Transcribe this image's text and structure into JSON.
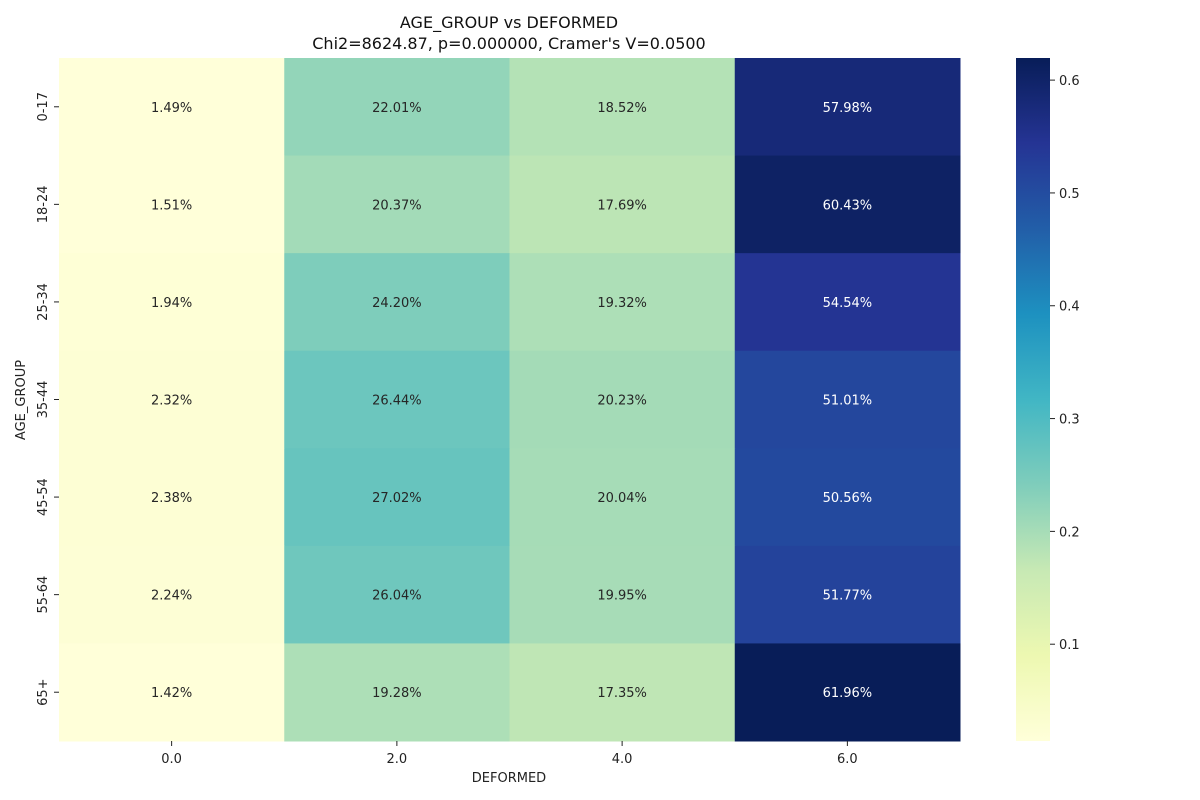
{
  "chart_data": {
    "type": "heatmap",
    "title": "AGE_GROUP vs DEFORMED",
    "subtitle": "Chi2=8624.87, p=0.000000, Cramer's V=0.0500",
    "xlabel": "DEFORMED",
    "ylabel": "AGE_GROUP",
    "x_categories": [
      "0.0",
      "2.0",
      "4.0",
      "6.0"
    ],
    "y_categories": [
      "0-17",
      "18-24",
      "25-34",
      "35-44",
      "45-54",
      "55-64",
      "65+"
    ],
    "values": [
      [
        0.0149,
        0.2201,
        0.1852,
        0.5798
      ],
      [
        0.0151,
        0.2037,
        0.1769,
        0.6043
      ],
      [
        0.0194,
        0.242,
        0.1932,
        0.5454
      ],
      [
        0.0232,
        0.2644,
        0.2023,
        0.5101
      ],
      [
        0.0238,
        0.2702,
        0.2004,
        0.5056
      ],
      [
        0.0224,
        0.2604,
        0.1995,
        0.5177
      ],
      [
        0.0142,
        0.1928,
        0.1735,
        0.6196
      ]
    ],
    "cell_labels": [
      [
        "1.49%",
        "22.01%",
        "18.52%",
        "57.98%"
      ],
      [
        "1.51%",
        "20.37%",
        "17.69%",
        "60.43%"
      ],
      [
        "1.94%",
        "24.20%",
        "19.32%",
        "54.54%"
      ],
      [
        "2.32%",
        "26.44%",
        "20.23%",
        "51.01%"
      ],
      [
        "2.38%",
        "27.02%",
        "20.04%",
        "50.56%"
      ],
      [
        "2.24%",
        "26.04%",
        "19.95%",
        "51.77%"
      ],
      [
        "1.42%",
        "19.28%",
        "17.35%",
        "61.96%"
      ]
    ],
    "colorbar": {
      "colormap": "YlGnBu",
      "range": [
        0.0142,
        0.6196
      ],
      "ticks": [
        "0.1",
        "0.2",
        "0.3",
        "0.4",
        "0.5",
        "0.6"
      ]
    }
  }
}
